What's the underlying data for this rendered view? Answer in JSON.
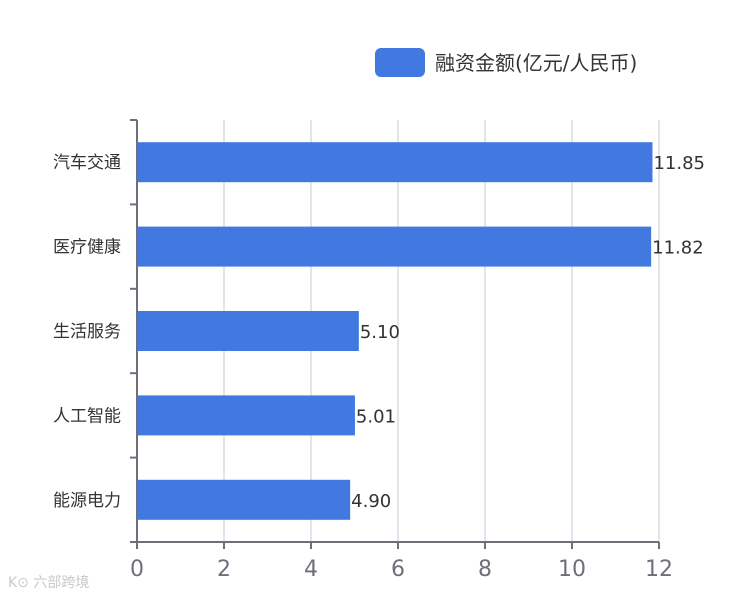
{
  "colors": {
    "bar": "#4279e0",
    "axis": "#6e7079",
    "grid": "#d9dde6"
  },
  "watermark": {
    "text": "K⊙ 六部跨境"
  },
  "chart_data": {
    "type": "bar",
    "orientation": "horizontal",
    "categories": [
      "汽车交通",
      "医疗健康",
      "生活服务",
      "人工智能",
      "能源电力"
    ],
    "series": [
      {
        "name": "融资金额(亿元/人民币)",
        "values": [
          11.85,
          11.82,
          5.1,
          5.01,
          4.9
        ]
      }
    ],
    "value_labels": [
      "11.85",
      "11.82",
      "5.10",
      "5.01",
      "4.90"
    ],
    "xlim": [
      0,
      12
    ],
    "xticks": [
      "0",
      "2",
      "4",
      "6",
      "8",
      "10",
      "12"
    ],
    "grid": true,
    "legend_position": "top-right",
    "title": "",
    "xlabel": "",
    "ylabel": ""
  }
}
